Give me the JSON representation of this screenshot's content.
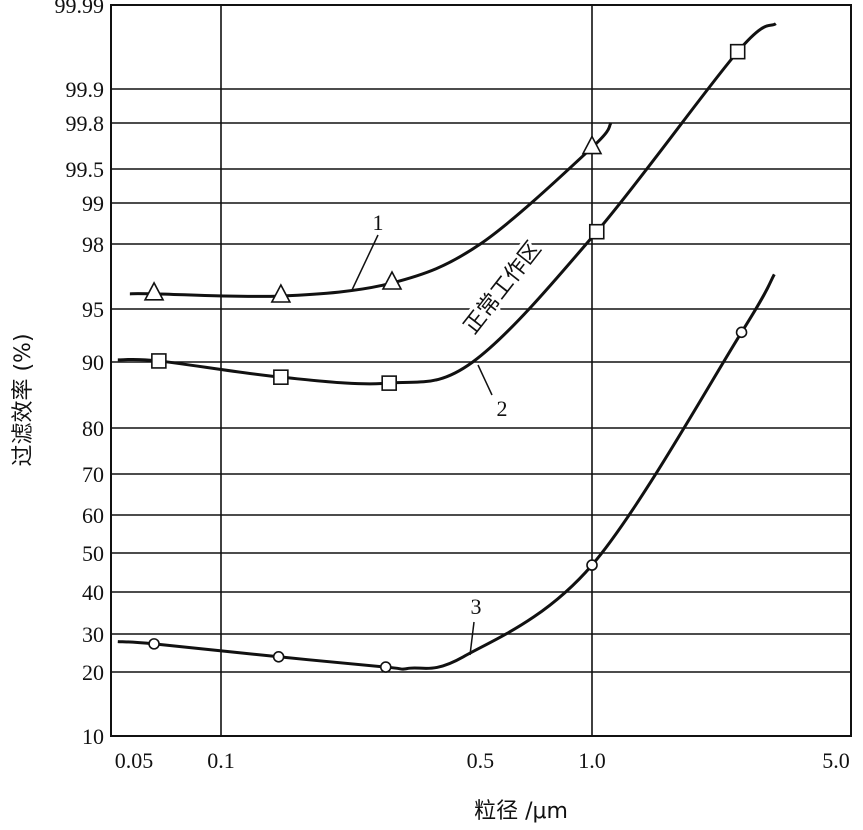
{
  "chart_data": {
    "type": "line",
    "title": "",
    "xlabel": "粒径 /μm",
    "ylabel": "过滤效率 (%)",
    "xscale": "log",
    "yscale": "probability",
    "xlim": [
      0.05,
      5.0
    ],
    "ylim": [
      10,
      99.99
    ],
    "xticks": [
      "0.05",
      "0.1",
      "0.5",
      "1.0",
      "5.0"
    ],
    "yticks": [
      "10",
      "20",
      "30",
      "40",
      "50",
      "60",
      "70",
      "80",
      "90",
      "95",
      "98",
      "99",
      "99.5",
      "99.8",
      "99.9",
      "99.99"
    ],
    "ytick_values": [
      10,
      20,
      30,
      40,
      50,
      60,
      70,
      80,
      90,
      95,
      98,
      99,
      99.5,
      99.8,
      99.9,
      99.99
    ],
    "vertical_grid": [
      0.1,
      1.0
    ],
    "grid": true,
    "annotation": "正常工作区",
    "series": [
      {
        "name": "1",
        "marker": "triangle",
        "points": [
          [
            0.066,
            95.7
          ],
          [
            0.145,
            95.6
          ],
          [
            0.289,
            96.2
          ],
          [
            1.0,
            99.64
          ]
        ],
        "curve": [
          [
            0.0568,
            95.7
          ],
          [
            0.066,
            95.7
          ],
          [
            0.145,
            95.6
          ],
          [
            0.289,
            96.2
          ],
          [
            0.5,
            98.0
          ],
          [
            1.0,
            99.64
          ],
          [
            1.125,
            99.8
          ]
        ]
      },
      {
        "name": "2",
        "marker": "square",
        "points": [
          [
            0.068,
            90.1
          ],
          [
            0.145,
            87.7
          ],
          [
            0.284,
            86.8
          ],
          [
            1.03,
            98.3
          ],
          [
            2.47,
            99.94
          ]
        ],
        "curve": [
          [
            0.0527,
            90.2
          ],
          [
            0.068,
            90.1
          ],
          [
            0.145,
            87.7
          ],
          [
            0.284,
            86.8
          ],
          [
            0.477,
            90.0
          ],
          [
            1.03,
            98.3
          ],
          [
            2.47,
            99.94
          ],
          [
            3.13,
            99.97
          ]
        ]
      },
      {
        "name": "3",
        "marker": "circle",
        "points": [
          [
            0.066,
            27.4
          ],
          [
            0.143,
            24.0
          ],
          [
            0.278,
            21.3
          ],
          [
            1.0,
            46.9
          ],
          [
            2.53,
            92.8
          ]
        ],
        "curve": [
          [
            0.0527,
            28.0
          ],
          [
            0.066,
            27.4
          ],
          [
            0.143,
            24.0
          ],
          [
            0.278,
            21.3
          ],
          [
            0.323,
            21.0
          ],
          [
            0.45,
            24.0
          ],
          [
            1.0,
            46.9
          ],
          [
            2.53,
            92.8
          ],
          [
            3.1,
            96.6
          ]
        ]
      }
    ]
  }
}
